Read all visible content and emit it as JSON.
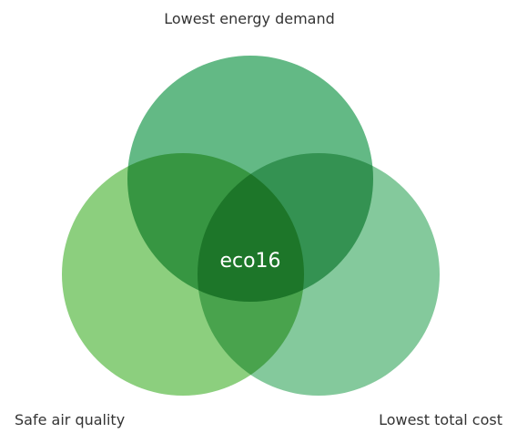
{
  "circles": [
    {
      "label": "Lowest energy demand"
    },
    {
      "label": "Safe air quality"
    },
    {
      "label": "Lowest total cost"
    }
  ],
  "center": {
    "label": "eco16"
  }
}
